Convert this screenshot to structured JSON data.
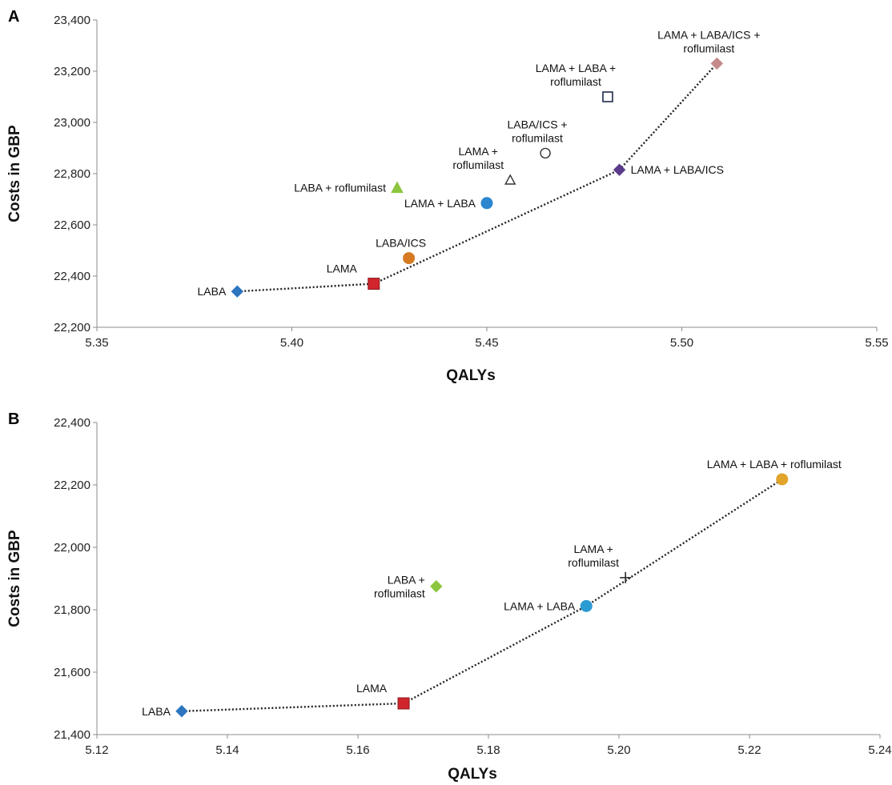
{
  "chart_data": [
    {
      "panel": "A",
      "type": "scatter",
      "xlabel": "QALYs",
      "ylabel": "Costs in GBP",
      "xlim": [
        5.35,
        5.55
      ],
      "ylim": [
        22200,
        23400
      ],
      "x_ticks": [
        "5.35",
        "5.40",
        "5.45",
        "5.50",
        "5.55"
      ],
      "y_ticks": [
        "22,200",
        "22,400",
        "22,600",
        "22,800",
        "23,000",
        "23,200",
        "23,400"
      ],
      "points": [
        {
          "label": [
            "LABA"
          ],
          "x": 5.386,
          "y": 22340,
          "marker": "diamond",
          "color": "#2e75c0",
          "label_pos": "left"
        },
        {
          "label": [
            "LAMA"
          ],
          "x": 5.421,
          "y": 22370,
          "marker": "square",
          "color": "#d0252c",
          "label_pos": "above-left"
        },
        {
          "label": [
            "LABA/ICS"
          ],
          "x": 5.43,
          "y": 22470,
          "marker": "circle",
          "color": "#d67a21",
          "label_pos": "above"
        },
        {
          "label": [
            "LAMA + LABA"
          ],
          "x": 5.45,
          "y": 22685,
          "marker": "circle",
          "color": "#2b86cf",
          "label_pos": "left"
        },
        {
          "label": [
            "LABA + roflumilast"
          ],
          "x": 5.427,
          "y": 22745,
          "marker": "triangle",
          "color": "#8cc63e",
          "label_pos": "left"
        },
        {
          "label": [
            "LAMA +",
            "roflumilast"
          ],
          "x": 5.456,
          "y": 22775,
          "marker": "triangle-open",
          "color": "#333333",
          "label_pos": "above-left"
        },
        {
          "label": [
            "LABA/ICS +",
            "roflumilast"
          ],
          "x": 5.465,
          "y": 22880,
          "marker": "circle-open",
          "color": "#333333",
          "label_pos": "above"
        },
        {
          "label": [
            "LAMA + LABA/ICS"
          ],
          "x": 5.484,
          "y": 22815,
          "marker": "diamond",
          "color": "#5a3b8c",
          "label_pos": "right"
        },
        {
          "label": [
            "LAMA + LABA +",
            "roflumilast"
          ],
          "x": 5.481,
          "y": 23100,
          "marker": "square-open",
          "color": "#1f2a4a",
          "label_pos": "above-left"
        },
        {
          "label": [
            "LAMA + LABA/ICS +",
            "roflumilast"
          ],
          "x": 5.509,
          "y": 23230,
          "marker": "diamond",
          "color": "#c48a8a",
          "label_pos": "above"
        }
      ],
      "frontier": [
        [
          5.386,
          22340
        ],
        [
          5.421,
          22370
        ],
        [
          5.484,
          22815
        ],
        [
          5.509,
          23230
        ]
      ]
    },
    {
      "panel": "B",
      "type": "scatter",
      "xlabel": "QALYs",
      "ylabel": "Costs in GBP",
      "xlim": [
        5.12,
        5.24
      ],
      "ylim": [
        21400,
        22400
      ],
      "x_ticks": [
        "5.12",
        "5.14",
        "5.16",
        "5.18",
        "5.20",
        "5.22",
        "5.24"
      ],
      "y_ticks": [
        "21,400",
        "21,600",
        "21,800",
        "22,000",
        "22,200",
        "22,400"
      ],
      "points": [
        {
          "label": [
            "LABA"
          ],
          "x": 5.133,
          "y": 21475,
          "marker": "diamond",
          "color": "#2e75c0",
          "label_pos": "left"
        },
        {
          "label": [
            "LAMA"
          ],
          "x": 5.167,
          "y": 21500,
          "marker": "square",
          "color": "#d0252c",
          "label_pos": "above-left"
        },
        {
          "label": [
            "LABA +",
            "roflumilast"
          ],
          "x": 5.172,
          "y": 21875,
          "marker": "diamond",
          "color": "#8cc63e",
          "label_pos": "left"
        },
        {
          "label": [
            "LAMA + LABA"
          ],
          "x": 5.195,
          "y": 21812,
          "marker": "circle",
          "color": "#2b9bd3",
          "label_pos": "left"
        },
        {
          "label": [
            "LAMA +",
            "roflumilast"
          ],
          "x": 5.201,
          "y": 21903,
          "marker": "plus",
          "color": "#222222",
          "label_pos": "above-left"
        },
        {
          "label": [
            "LAMA + LABA + roflumilast"
          ],
          "x": 5.225,
          "y": 22218,
          "marker": "circle",
          "color": "#e0a52a",
          "label_pos": "above"
        }
      ],
      "frontier": [
        [
          5.133,
          21475
        ],
        [
          5.167,
          21500
        ],
        [
          5.195,
          21812
        ],
        [
          5.225,
          22218
        ]
      ]
    }
  ]
}
